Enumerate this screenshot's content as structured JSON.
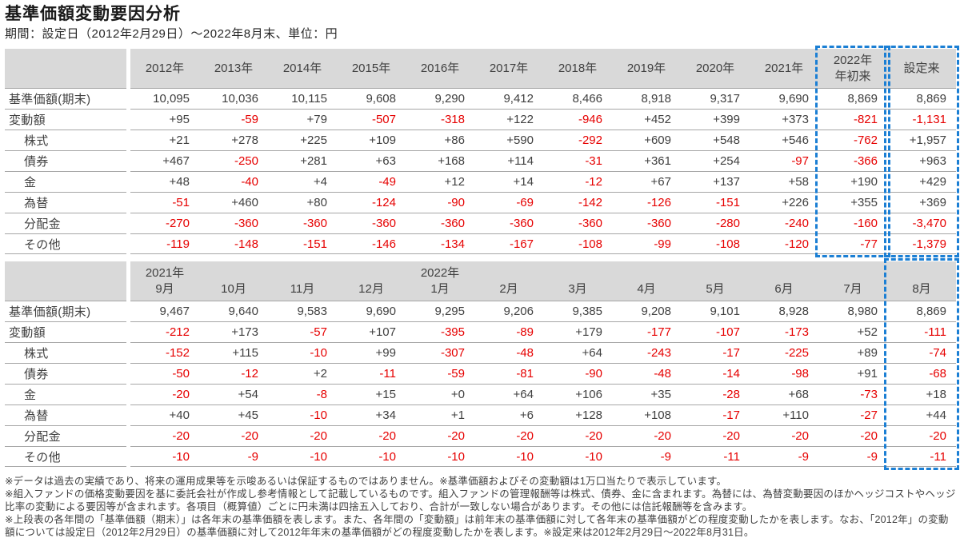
{
  "page": {
    "title": "基準価額変動要因分析",
    "subtitle": "期間：設定日（2012年2月29日）～2022年8月末、単位：円"
  },
  "colors": {
    "negative_value": "#e60000",
    "normal_value": "#404040",
    "header_background": "#d9d9d9",
    "highlight_dashed_border": "#1b7fd4",
    "row_separator": "#a6a6a6"
  },
  "yearly_table": {
    "header": [
      [
        "2012年"
      ],
      [
        "2013年"
      ],
      [
        "2014年"
      ],
      [
        "2015年"
      ],
      [
        "2016年"
      ],
      [
        "2017年"
      ],
      [
        "2018年"
      ],
      [
        "2019年"
      ],
      [
        "2020年"
      ],
      [
        "2021年"
      ],
      [
        "2022年",
        "年初来"
      ],
      [
        "設定来"
      ]
    ],
    "highlight_cols": [
      10,
      11
    ],
    "rows": [
      {
        "label": "基準価額(期末)",
        "indent": false,
        "values": [
          "10,095",
          "10,036",
          "10,115",
          "9,608",
          "9,290",
          "9,412",
          "8,466",
          "8,918",
          "9,317",
          "9,690",
          "8,869",
          "8,869"
        ]
      },
      {
        "label": "変動額",
        "indent": false,
        "values": [
          "+95",
          "-59",
          "+79",
          "-507",
          "-318",
          "+122",
          "-946",
          "+452",
          "+399",
          "+373",
          "-821",
          "-1,131"
        ]
      },
      {
        "label": "株式",
        "indent": true,
        "values": [
          "+21",
          "+278",
          "+225",
          "+109",
          "+86",
          "+590",
          "-292",
          "+609",
          "+548",
          "+546",
          "-762",
          "+1,957"
        ]
      },
      {
        "label": "債券",
        "indent": true,
        "values": [
          "+467",
          "-250",
          "+281",
          "+63",
          "+168",
          "+114",
          "-31",
          "+361",
          "+254",
          "-97",
          "-366",
          "+963"
        ]
      },
      {
        "label": "金",
        "indent": true,
        "values": [
          "+48",
          "-40",
          "+4",
          "-49",
          "+12",
          "+14",
          "-12",
          "+67",
          "+137",
          "+58",
          "+190",
          "+429"
        ]
      },
      {
        "label": "為替",
        "indent": true,
        "values": [
          "-51",
          "+460",
          "+80",
          "-124",
          "-90",
          "-69",
          "-142",
          "-126",
          "-151",
          "+226",
          "+355",
          "+369"
        ]
      },
      {
        "label": "分配金",
        "indent": true,
        "values": [
          "-270",
          "-360",
          "-360",
          "-360",
          "-360",
          "-360",
          "-360",
          "-360",
          "-280",
          "-240",
          "-160",
          "-3,470"
        ]
      },
      {
        "label": "その他",
        "indent": true,
        "values": [
          "-119",
          "-148",
          "-151",
          "-146",
          "-134",
          "-167",
          "-108",
          "-99",
          "-108",
          "-120",
          "-77",
          "-1,379"
        ]
      }
    ]
  },
  "monthly_table": {
    "header": [
      [
        "2021年",
        "9月"
      ],
      [
        "",
        "10月"
      ],
      [
        "",
        "11月"
      ],
      [
        "",
        "12月"
      ],
      [
        "2022年",
        "1月"
      ],
      [
        "",
        "2月"
      ],
      [
        "",
        "3月"
      ],
      [
        "",
        "4月"
      ],
      [
        "",
        "5月"
      ],
      [
        "",
        "6月"
      ],
      [
        "",
        "7月"
      ],
      [
        "",
        "8月"
      ]
    ],
    "highlight_cols": [
      11
    ],
    "rows": [
      {
        "label": "基準価額(期末)",
        "indent": false,
        "values": [
          "9,467",
          "9,640",
          "9,583",
          "9,690",
          "9,295",
          "9,206",
          "9,385",
          "9,208",
          "9,101",
          "8,928",
          "8,980",
          "8,869"
        ]
      },
      {
        "label": "変動額",
        "indent": false,
        "values": [
          "-212",
          "+173",
          "-57",
          "+107",
          "-395",
          "-89",
          "+179",
          "-177",
          "-107",
          "-173",
          "+52",
          "-111"
        ]
      },
      {
        "label": "株式",
        "indent": true,
        "values": [
          "-152",
          "+115",
          "-10",
          "+99",
          "-307",
          "-48",
          "+64",
          "-243",
          "-17",
          "-225",
          "+89",
          "-74"
        ]
      },
      {
        "label": "債券",
        "indent": true,
        "values": [
          "-50",
          "-12",
          "+2",
          "-11",
          "-59",
          "-81",
          "-90",
          "-48",
          "-14",
          "-98",
          "+91",
          "-68"
        ]
      },
      {
        "label": "金",
        "indent": true,
        "values": [
          "-20",
          "+54",
          "-8",
          "+15",
          "+0",
          "+64",
          "+106",
          "+35",
          "-28",
          "+68",
          "-73",
          "+18"
        ]
      },
      {
        "label": "為替",
        "indent": true,
        "values": [
          "+40",
          "+45",
          "-10",
          "+34",
          "+1",
          "+6",
          "+128",
          "+108",
          "-17",
          "+110",
          "-27",
          "+44"
        ]
      },
      {
        "label": "分配金",
        "indent": true,
        "values": [
          "-20",
          "-20",
          "-20",
          "-20",
          "-20",
          "-20",
          "-20",
          "-20",
          "-20",
          "-20",
          "-20",
          "-20"
        ]
      },
      {
        "label": "その他",
        "indent": true,
        "values": [
          "-10",
          "-9",
          "-10",
          "-10",
          "-10",
          "-10",
          "-10",
          "-9",
          "-11",
          "-9",
          "-9",
          "-11"
        ]
      }
    ]
  },
  "footnotes": [
    "※データは過去の実績であり、将来の運用成果等を示唆あるいは保証するものではありません。※基準価額およびその変動額は1万口当たりで表示しています。",
    "※組入ファンドの価格変動要因を基に委託会社が作成し参考情報として記載しているものです。組入ファンドの管理報酬等は株式、債券、金に含まれます。為替には、為替変動要因のほかヘッジコストやヘッジ比率の変動による要因等が含まれます。各項目（概算値）ごとに円未満は四捨五入しており、合計が一致しない場合があります。その他には信託報酬等を含みます。",
    "※上段表の各年間の「基準価額（期末）」は各年末の基準価額を表します。また、各年間の「変動額」は前年末の基準価額に対して各年末の基準価額がどの程度変動したかを表します。なお、「2012年」の変動額については設定日（2012年2月29日）の基準価額に対して2012年年末の基準価額がどの程度変動したかを表します。※設定来は2012年2月29日～2022年8月31日。"
  ]
}
